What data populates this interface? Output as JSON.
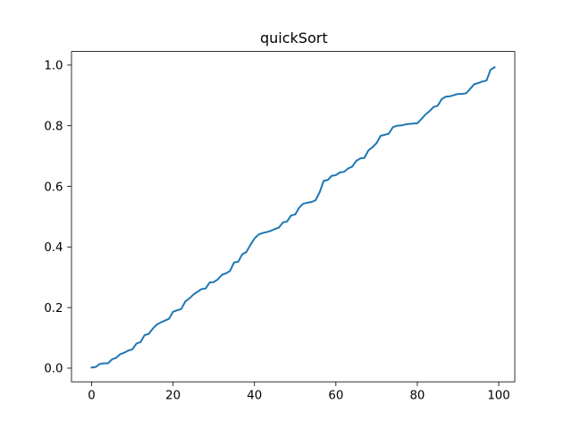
{
  "chart_data": {
    "type": "line",
    "title": "quickSort",
    "xlabel": "",
    "ylabel": "",
    "xlim": [
      -4.95,
      103.95
    ],
    "ylim": [
      -0.045,
      1.045
    ],
    "x_ticks": [
      0,
      20,
      40,
      60,
      80,
      100
    ],
    "y_ticks": [
      0.0,
      0.2,
      0.4,
      0.6,
      0.8,
      1.0
    ],
    "x_tick_labels": [
      "0",
      "20",
      "40",
      "60",
      "80",
      "100"
    ],
    "y_tick_labels": [
      "0.0",
      "0.2",
      "0.4",
      "0.6",
      "0.8",
      "1.0"
    ],
    "grid": false,
    "legend": "none",
    "series": [
      {
        "color": "#1f77b4",
        "x": [
          0,
          1,
          2,
          3,
          4,
          5,
          6,
          7,
          8,
          9,
          10,
          11,
          12,
          13,
          14,
          15,
          16,
          17,
          18,
          19,
          20,
          21,
          22,
          23,
          24,
          25,
          26,
          27,
          28,
          29,
          30,
          31,
          32,
          33,
          34,
          35,
          36,
          37,
          38,
          39,
          40,
          41,
          42,
          43,
          44,
          45,
          46,
          47,
          48,
          49,
          50,
          51,
          52,
          53,
          54,
          55,
          56,
          57,
          58,
          59,
          60,
          61,
          62,
          63,
          64,
          65,
          66,
          67,
          68,
          69,
          70,
          71,
          72,
          73,
          74,
          75,
          76,
          77,
          78,
          79,
          80,
          81,
          82,
          83,
          84,
          85,
          86,
          87,
          88,
          89,
          90,
          91,
          92,
          93,
          94,
          95,
          96,
          97,
          98,
          99
        ],
        "values": [
          0.002,
          0.004,
          0.014,
          0.016,
          0.016,
          0.029,
          0.034,
          0.046,
          0.051,
          0.058,
          0.062,
          0.081,
          0.086,
          0.109,
          0.113,
          0.13,
          0.144,
          0.151,
          0.157,
          0.163,
          0.186,
          0.191,
          0.195,
          0.22,
          0.23,
          0.243,
          0.252,
          0.261,
          0.263,
          0.283,
          0.284,
          0.293,
          0.308,
          0.313,
          0.321,
          0.349,
          0.351,
          0.376,
          0.383,
          0.407,
          0.428,
          0.441,
          0.446,
          0.449,
          0.453,
          0.459,
          0.464,
          0.481,
          0.484,
          0.504,
          0.507,
          0.53,
          0.543,
          0.546,
          0.548,
          0.554,
          0.58,
          0.618,
          0.621,
          0.635,
          0.637,
          0.646,
          0.648,
          0.659,
          0.665,
          0.684,
          0.692,
          0.694,
          0.719,
          0.729,
          0.743,
          0.767,
          0.77,
          0.774,
          0.795,
          0.8,
          0.801,
          0.804,
          0.806,
          0.807,
          0.808,
          0.822,
          0.837,
          0.848,
          0.862,
          0.866,
          0.888,
          0.896,
          0.897,
          0.901,
          0.905,
          0.905,
          0.907,
          0.922,
          0.937,
          0.941,
          0.946,
          0.949,
          0.985,
          0.993
        ]
      }
    ]
  }
}
